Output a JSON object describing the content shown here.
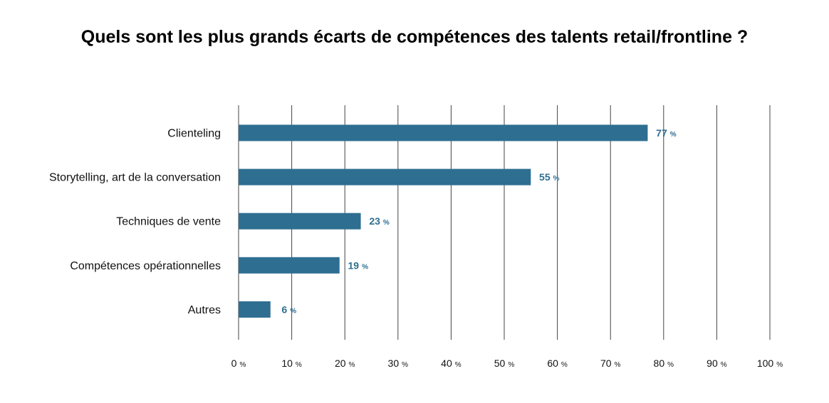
{
  "chart_data": {
    "type": "bar",
    "orientation": "horizontal",
    "title": "Quels sont les plus grands écarts de compétences des talents retail/frontline ?",
    "categories": [
      "Clienteling",
      "Storytelling, art de la conversation",
      "Techniques de vente",
      "Compétences opérationnelles",
      "Autres"
    ],
    "values": [
      77,
      55,
      23,
      19,
      6
    ],
    "unit": "%",
    "xlim": [
      0,
      100
    ],
    "xticks": [
      0,
      10,
      20,
      30,
      40,
      50,
      60,
      70,
      80,
      90,
      100
    ],
    "grid": true,
    "bar_color": "#2e6e91",
    "label_color": "#2e6e91",
    "grid_color": "#444444"
  }
}
